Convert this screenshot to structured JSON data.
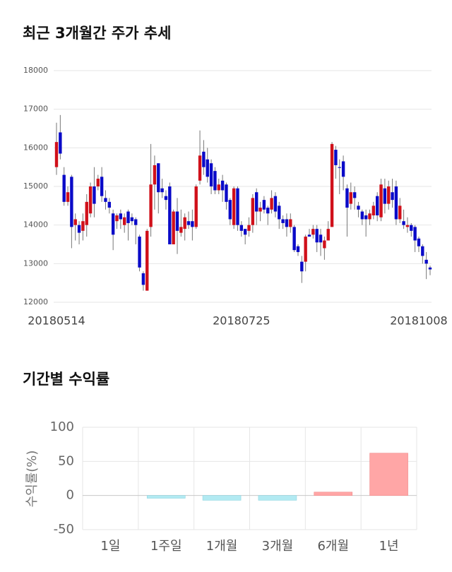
{
  "chart_data": [
    {
      "type": "candlestick",
      "title": "최근 3개월간 주가 추세",
      "categories": [
        "20180514",
        null,
        null,
        null,
        null,
        null,
        null,
        null,
        null,
        null,
        null,
        null,
        null,
        null,
        null,
        null,
        null,
        null,
        null,
        null,
        null,
        null,
        null,
        null,
        null,
        null,
        null,
        null,
        null,
        null,
        null,
        null,
        null,
        null,
        null,
        null,
        null,
        null,
        null,
        null,
        null,
        null,
        null,
        null,
        null,
        null,
        null,
        null,
        null,
        "20180725",
        null,
        null,
        null,
        null,
        null,
        null,
        null,
        null,
        null,
        null,
        null,
        null,
        null,
        null,
        null,
        null,
        null,
        null,
        null,
        null,
        null,
        null,
        null,
        null,
        null,
        null,
        null,
        null,
        null,
        null,
        null,
        null,
        null,
        null,
        null,
        null,
        null,
        null,
        null,
        null,
        null,
        null,
        null,
        null,
        null,
        null,
        "20181008",
        null,
        null,
        null
      ],
      "open": [
        15500,
        16400,
        15300,
        14600,
        15250,
        14000,
        14000,
        13850,
        14000,
        14300,
        15000,
        15000,
        15250,
        14700,
        14600,
        14300,
        14100,
        14300,
        14000,
        14350,
        14200,
        14150,
        13700,
        12750,
        12300,
        13950,
        15050,
        15600,
        14950,
        14750,
        15000,
        13500,
        14350,
        13800,
        13900,
        14100,
        14100,
        13950,
        15150,
        15900,
        15700,
        15600,
        15400,
        14900,
        15150,
        15050,
        14650,
        14000,
        14950,
        14000,
        13900,
        13850,
        14000,
        14850,
        14350,
        14650,
        14450,
        14400,
        14750,
        14500,
        14150,
        14150,
        13950,
        13950,
        13450,
        13050,
        13050,
        13750,
        13750,
        13900,
        13750,
        13400,
        13600,
        13950,
        15950,
        15500,
        15650,
        14950,
        14550,
        14850,
        14500,
        14350,
        14250,
        14150,
        14250,
        14750,
        14200,
        14950,
        14550,
        14850,
        15000,
        14150,
        14100,
        13950,
        14000,
        13950,
        13650,
        13450,
        13100,
        12900
      ],
      "high": [
        16650,
        16850,
        15500,
        15000,
        15300,
        14300,
        14100,
        14300,
        14800,
        15100,
        15500,
        15300,
        15500,
        14900,
        14700,
        14400,
        14300,
        14400,
        14300,
        14400,
        14300,
        14200,
        13750,
        12800,
        13900,
        16100,
        15800,
        15600,
        15200,
        14900,
        15100,
        14400,
        14700,
        14400,
        14300,
        14350,
        14400,
        15050,
        16450,
        16200,
        16000,
        15700,
        15500,
        15200,
        15300,
        15100,
        14700,
        15000,
        15000,
        14100,
        13900,
        14200,
        14800,
        14950,
        14600,
        14750,
        14500,
        14900,
        14850,
        14600,
        14250,
        14300,
        14300,
        14000,
        13500,
        13200,
        13750,
        13900,
        14000,
        14000,
        13900,
        13700,
        14100,
        16150,
        16050,
        15700,
        15800,
        15050,
        15100,
        15000,
        14600,
        14400,
        14400,
        14400,
        14600,
        14850,
        15200,
        15200,
        15150,
        15200,
        15150,
        14700,
        14400,
        14200,
        14050,
        14000,
        13700,
        13500,
        13300,
        12950
      ],
      "low": [
        15300,
        15700,
        14500,
        14500,
        13400,
        13600,
        13500,
        13600,
        13700,
        14200,
        14200,
        14900,
        14600,
        14400,
        14300,
        13350,
        13900,
        13900,
        13800,
        13600,
        14000,
        13500,
        12800,
        12300,
        12300,
        13700,
        14400,
        14300,
        14700,
        14400,
        13500,
        13500,
        13250,
        13700,
        13600,
        13900,
        13600,
        13900,
        15050,
        15300,
        15100,
        14800,
        14800,
        14800,
        14600,
        14400,
        14000,
        13900,
        13850,
        13700,
        13500,
        13700,
        13800,
        14000,
        14100,
        14300,
        14000,
        14300,
        14200,
        13900,
        13900,
        13700,
        13800,
        13300,
        13200,
        12500,
        12800,
        13700,
        13650,
        13300,
        13200,
        13100,
        13600,
        13950,
        15200,
        14800,
        14900,
        13700,
        14400,
        14400,
        14200,
        14000,
        13700,
        14000,
        14150,
        14100,
        14100,
        14300,
        14400,
        14450,
        14000,
        14050,
        13900,
        13800,
        13700,
        13300,
        13300,
        13000,
        12600,
        12700
      ],
      "close": [
        16150,
        15850,
        14600,
        14850,
        13950,
        14150,
        13800,
        14100,
        14600,
        15000,
        14550,
        15200,
        14750,
        14600,
        14450,
        13750,
        14250,
        14150,
        14200,
        14050,
        14100,
        14000,
        12900,
        12450,
        13850,
        15050,
        15550,
        14850,
        14850,
        14650,
        13500,
        14350,
        13850,
        13950,
        14200,
        14000,
        13950,
        15000,
        15800,
        15500,
        15250,
        15000,
        14900,
        15050,
        14900,
        14600,
        14150,
        14950,
        14000,
        13850,
        13750,
        14000,
        14700,
        14350,
        14450,
        14400,
        14300,
        14700,
        14350,
        14150,
        14050,
        13950,
        14150,
        13350,
        13300,
        12800,
        13700,
        13700,
        13900,
        13550,
        13550,
        13600,
        13900,
        16100,
        15550,
        15480,
        15250,
        14450,
        14850,
        14700,
        14400,
        14150,
        14150,
        14300,
        14500,
        14250,
        15050,
        14550,
        15000,
        14650,
        14150,
        14500,
        14000,
        14000,
        13850,
        13600,
        13450,
        13200,
        13000,
        12850
      ],
      "up_color": "#d0101a",
      "down_color": "#0a0ac8",
      "ylim": [
        12000,
        18000
      ],
      "yticks": [
        12000,
        13000,
        14000,
        15000,
        16000,
        17000,
        18000
      ],
      "grid": true
    },
    {
      "type": "bar",
      "title": "기간별 수익률",
      "y_label": "수익률(%)",
      "categories": [
        "1일",
        "1주일",
        "1개월",
        "3개월",
        "6개월",
        "1년"
      ],
      "values": [
        0,
        -4,
        -7,
        -7,
        5,
        62
      ],
      "positive_color": "#ffa6a6",
      "negative_color": "#b2eaf2",
      "ylim": [
        -50,
        100
      ],
      "yticks": [
        -50,
        0,
        50,
        100
      ],
      "grid": true
    }
  ]
}
